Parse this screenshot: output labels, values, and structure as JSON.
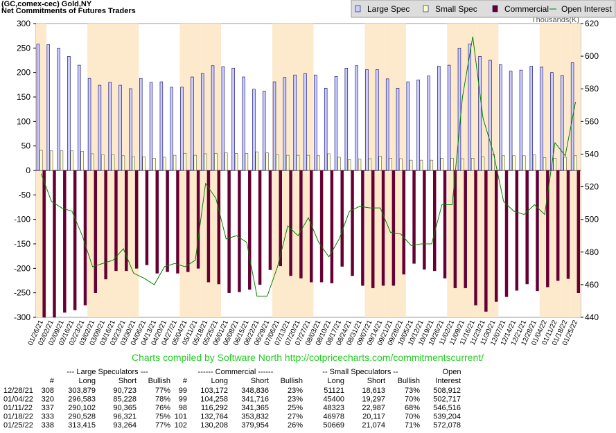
{
  "chart_data": {
    "type": "bar",
    "title": "(GC,comex-cec) Gold,NY",
    "subtitle": "Net Commitments of Futures Traders",
    "y2_label": "Thousands(K)",
    "footer": "Charts compiled by Software North  http://cotpricecharts.com/commitmentscurrent/",
    "categories": [
      "01/26/21",
      "02/02/21",
      "02/09/21",
      "02/16/21",
      "02/23/21",
      "03/02/21",
      "03/09/21",
      "03/16/21",
      "03/23/21",
      "03/30/21",
      "04/06/21",
      "04/13/21",
      "04/20/21",
      "04/27/21",
      "05/04/21",
      "05/11/21",
      "05/18/21",
      "05/25/21",
      "06/01/21",
      "06/08/21",
      "06/15/21",
      "06/22/21",
      "06/29/21",
      "07/06/21",
      "07/13/21",
      "07/20/21",
      "07/27/21",
      "08/03/21",
      "08/10/21",
      "08/17/21",
      "08/24/21",
      "08/31/21",
      "09/07/21",
      "09/14/21",
      "09/21/21",
      "09/28/21",
      "10/05/21",
      "10/12/21",
      "10/19/21",
      "10/26/21",
      "11/02/21",
      "11/09/21",
      "11/16/21",
      "11/23/21",
      "11/30/21",
      "12/07/21",
      "12/14/21",
      "12/21/21",
      "12/28/21",
      "01/04/22",
      "01/11/22",
      "01/18/22",
      "01/25/22"
    ],
    "series": [
      {
        "name": "Large Spec",
        "color": "#ccccff",
        "values": [
          258,
          257,
          250,
          233,
          215,
          188,
          174,
          180,
          174,
          167,
          188,
          180,
          181,
          170,
          170,
          191,
          198,
          214,
          212,
          209,
          191,
          166,
          162,
          181,
          190,
          195,
          198,
          195,
          168,
          192,
          209,
          214,
          206,
          206,
          187,
          168,
          181,
          185,
          193,
          213,
          215,
          250,
          258,
          233,
          225,
          216,
          203,
          205,
          213,
          211,
          200,
          194,
          220
        ]
      },
      {
        "name": "Small Spec",
        "color": "#ffffcc",
        "values": [
          41,
          40,
          40,
          40,
          39,
          34,
          32,
          32,
          30,
          28,
          28,
          25,
          27,
          31,
          35,
          31,
          34,
          35,
          36,
          35,
          35,
          38,
          36,
          32,
          31,
          31,
          31,
          30,
          34,
          27,
          22,
          23,
          24,
          29,
          25,
          24,
          21,
          21,
          21,
          25,
          25,
          24,
          25,
          28,
          33,
          30,
          30,
          30,
          32,
          26,
          25,
          27,
          30
        ]
      },
      {
        "name": "Commercial",
        "color": "#660033",
        "values": [
          -300,
          -300,
          -290,
          -285,
          -275,
          -250,
          -222,
          -205,
          -205,
          -200,
          -193,
          -210,
          -207,
          -210,
          -207,
          -200,
          -228,
          -232,
          -250,
          -248,
          -243,
          -233,
          -203,
          -195,
          -215,
          -220,
          -228,
          -228,
          -230,
          -196,
          -215,
          -235,
          -240,
          -235,
          -235,
          -212,
          -190,
          -202,
          -205,
          -220,
          -240,
          -240,
          -275,
          -288,
          -268,
          -258,
          -245,
          -232,
          -246,
          -238,
          -225,
          -221,
          -250
        ]
      },
      {
        "name": "Open Interest",
        "color": "#008000",
        "type": "line",
        "axis": "y2",
        "values": [
          528,
          511,
          507,
          505,
          490,
          471,
          473,
          475,
          482,
          467,
          464,
          460,
          471,
          473,
          471,
          475,
          522,
          513,
          488,
          490,
          486,
          453,
          453,
          471,
          496,
          490,
          501,
          486,
          477,
          488,
          505,
          508,
          507,
          507,
          492,
          491,
          484,
          485,
          485,
          509,
          509,
          575,
          612,
          562,
          541,
          511,
          505,
          503,
          509,
          503,
          547,
          539,
          572
        ]
      }
    ],
    "ylim": [
      -300,
      300
    ],
    "yticks": [
      -300,
      -250,
      -200,
      -150,
      -100,
      -50,
      0,
      50,
      100,
      150,
      200,
      250,
      300
    ],
    "y2lim": [
      440,
      620
    ],
    "y2ticks": [
      440,
      460,
      480,
      500,
      520,
      540,
      560,
      580,
      600,
      620
    ],
    "legend": "top-right"
  },
  "table": {
    "header1": [
      "--- Large Speculators ---",
      "------ Commercial ------",
      "-- Small Speculators --",
      "Open"
    ],
    "header2": [
      "#",
      "Long",
      "Short",
      "Bullish",
      "#",
      "Long",
      "Short",
      "Bullish",
      "Long",
      "Short",
      "Bullish",
      "Interest"
    ],
    "rows": [
      [
        "12/28/21",
        "308",
        "303,879",
        "90,723",
        "77%",
        "99",
        "103,172",
        "348,836",
        "23%",
        "51121",
        "18,613",
        "73%",
        "508,912"
      ],
      [
        "01/04/22",
        "320",
        "296,583",
        "85,228",
        "78%",
        "99",
        "104,258",
        "341,716",
        "23%",
        "45400",
        "19,297",
        "70%",
        "502,717"
      ],
      [
        "01/11/22",
        "337",
        "290,102",
        "90,365",
        "76%",
        "98",
        "116,292",
        "341,365",
        "25%",
        "48323",
        "22,987",
        "68%",
        "546,516"
      ],
      [
        "01/18/22",
        "333",
        "290,528",
        "96,321",
        "75%",
        "101",
        "132,764",
        "353,832",
        "27%",
        "46978",
        "20,117",
        "70%",
        "539,204"
      ],
      [
        "01/25/22",
        "338",
        "313,415",
        "93,264",
        "77%",
        "102",
        "130,208",
        "379,954",
        "26%",
        "50669",
        "21,074",
        "71%",
        "572,078"
      ]
    ]
  }
}
